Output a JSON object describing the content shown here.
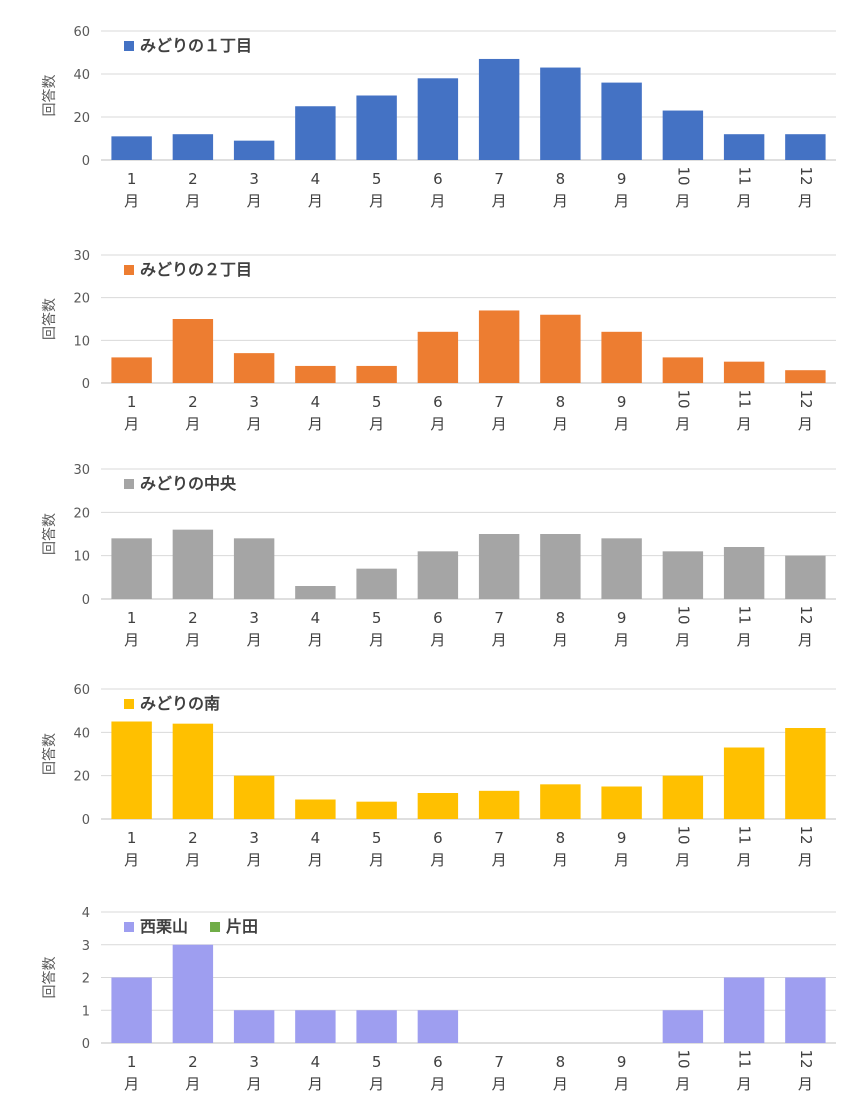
{
  "chart_data": [
    {
      "type": "bar",
      "categories": [
        "1月",
        "2月",
        "3月",
        "4月",
        "5月",
        "6月",
        "7月",
        "8月",
        "9月",
        "10月",
        "11月",
        "12月"
      ],
      "series": [
        {
          "name": "みどりの１丁目",
          "color": "#4472c4",
          "values": [
            11,
            12,
            9,
            25,
            30,
            38,
            47,
            43,
            36,
            23,
            12,
            12
          ]
        }
      ],
      "ylabel": "回答数",
      "ylim": [
        0,
        60
      ],
      "yticks": [
        0,
        20,
        40,
        60
      ],
      "grid": true,
      "legend": "top-left"
    },
    {
      "type": "bar",
      "categories": [
        "1月",
        "2月",
        "3月",
        "4月",
        "5月",
        "6月",
        "7月",
        "8月",
        "9月",
        "10月",
        "11月",
        "12月"
      ],
      "series": [
        {
          "name": "みどりの２丁目",
          "color": "#ed7d31",
          "values": [
            6,
            15,
            7,
            4,
            4,
            12,
            17,
            16,
            12,
            6,
            5,
            3
          ]
        }
      ],
      "ylabel": "回答数",
      "ylim": [
        0,
        30
      ],
      "yticks": [
        0,
        10,
        20,
        30
      ],
      "grid": true,
      "legend": "top-left"
    },
    {
      "type": "bar",
      "categories": [
        "1月",
        "2月",
        "3月",
        "4月",
        "5月",
        "6月",
        "7月",
        "8月",
        "9月",
        "10月",
        "11月",
        "12月"
      ],
      "series": [
        {
          "name": "みどりの中央",
          "color": "#a5a5a5",
          "values": [
            14,
            16,
            14,
            3,
            7,
            11,
            15,
            15,
            14,
            11,
            12,
            10
          ]
        }
      ],
      "ylabel": "回答数",
      "ylim": [
        0,
        30
      ],
      "yticks": [
        0,
        10,
        20,
        30
      ],
      "grid": true,
      "legend": "top-left"
    },
    {
      "type": "bar",
      "categories": [
        "1月",
        "2月",
        "3月",
        "4月",
        "5月",
        "6月",
        "7月",
        "8月",
        "9月",
        "10月",
        "11月",
        "12月"
      ],
      "series": [
        {
          "name": "みどりの南",
          "color": "#ffc000",
          "values": [
            45,
            44,
            20,
            9,
            8,
            12,
            13,
            16,
            15,
            20,
            33,
            42
          ]
        }
      ],
      "ylabel": "回答数",
      "ylim": [
        0,
        60
      ],
      "yticks": [
        0,
        20,
        40,
        60
      ],
      "grid": true,
      "legend": "top-left"
    },
    {
      "type": "bar",
      "categories": [
        "1月",
        "2月",
        "3月",
        "4月",
        "5月",
        "6月",
        "7月",
        "8月",
        "9月",
        "10月",
        "11月",
        "12月"
      ],
      "series": [
        {
          "name": "西栗山",
          "color": "#9e9ef0",
          "values": [
            2,
            3,
            1,
            1,
            1,
            1,
            0,
            0,
            0,
            1,
            2,
            2
          ]
        },
        {
          "name": "片田",
          "color": "#70ad47",
          "values": [
            0,
            0,
            0,
            0,
            0,
            0,
            0,
            0,
            0,
            0,
            0,
            0
          ]
        }
      ],
      "ylabel": "回答数",
      "ylim": [
        0,
        4
      ],
      "yticks": [
        0,
        1,
        2,
        3,
        4
      ],
      "grid": true,
      "legend": "top-left"
    }
  ]
}
